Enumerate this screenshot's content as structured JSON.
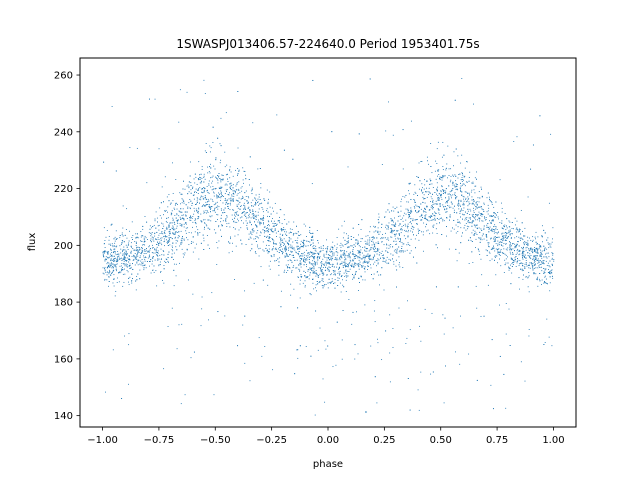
{
  "chart_data": {
    "type": "scatter",
    "title": "1SWASPJ013406.57-224640.0 Period 1953401.75s",
    "xlabel": "phase",
    "ylabel": "flux",
    "xlim": [
      -1.1,
      1.1
    ],
    "ylim": [
      136,
      266
    ],
    "x_ticks": [
      -1.0,
      -0.75,
      -0.5,
      -0.25,
      0.0,
      0.25,
      0.5,
      0.75,
      1.0
    ],
    "x_tick_labels": [
      "−1.00",
      "−0.75",
      "−0.50",
      "−0.25",
      "0.00",
      "0.25",
      "0.50",
      "0.75",
      "1.00"
    ],
    "y_ticks": [
      140,
      160,
      180,
      200,
      220,
      240,
      260
    ],
    "y_tick_labels": [
      "140",
      "160",
      "180",
      "200",
      "220",
      "240",
      "260"
    ],
    "grid": false,
    "legend": "none",
    "series_color": "#1f77b4",
    "trend_profile": {
      "description": "folded light curve; point cloud repeats with period 1 in phase",
      "phase": [
        -1.0,
        -0.9,
        -0.8,
        -0.7,
        -0.6,
        -0.5,
        -0.4,
        -0.3,
        -0.2,
        -0.1,
        0.0,
        0.1,
        0.2,
        0.3,
        0.4,
        0.5,
        0.6,
        0.7,
        0.8,
        0.9,
        1.0
      ],
      "center_flux": [
        194,
        196,
        199,
        204,
        213,
        217,
        215,
        207,
        200,
        196,
        193,
        195,
        198,
        204,
        213,
        217,
        215,
        207,
        200,
        196,
        194
      ],
      "spread_flux": [
        8,
        8,
        9,
        10,
        13,
        14,
        13,
        11,
        9,
        8,
        8,
        8,
        9,
        10,
        13,
        14,
        13,
        11,
        9,
        8,
        8
      ],
      "outlier_range": [
        140,
        262
      ]
    }
  }
}
